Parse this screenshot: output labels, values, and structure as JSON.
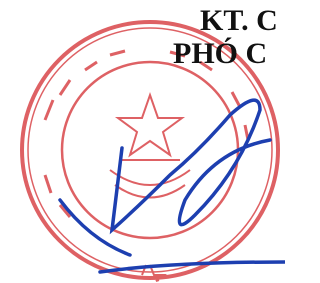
{
  "header": {
    "lines": [
      "KT. C",
      "PHÓ C"
    ]
  }
}
